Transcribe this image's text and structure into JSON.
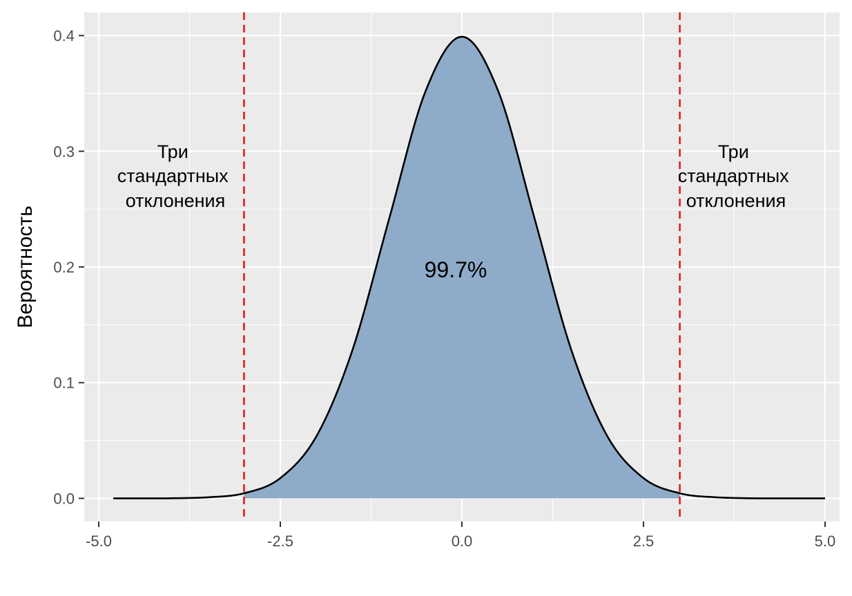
{
  "chart_data": {
    "type": "area",
    "title": "",
    "xlabel": "",
    "ylabel": "Вероятность",
    "xlim": [
      -5.2,
      5.2
    ],
    "ylim": [
      -0.02,
      0.42
    ],
    "x_ticks": [
      -5.0,
      -2.5,
      0.0,
      2.5,
      5.0
    ],
    "x_tick_labels": [
      "-5.0",
      "-2.5",
      "0.0",
      "2.5",
      "5.0"
    ],
    "y_ticks": [
      0.0,
      0.1,
      0.2,
      0.3,
      0.4
    ],
    "y_tick_labels": [
      "0.0",
      "0.1",
      "0.2",
      "0.3",
      "0.4"
    ],
    "grid": true,
    "series": [
      {
        "x": [
          -4.8,
          -4.5,
          -4.0,
          -3.5,
          -3.0,
          -2.5,
          -2.0,
          -1.5,
          -1.0,
          -0.5,
          0.0,
          0.5,
          1.0,
          1.5,
          2.0,
          2.5,
          3.0,
          3.5,
          4.0,
          4.5,
          5.0
        ],
        "y": [
          0.0,
          0.0,
          0.0001,
          0.0009,
          0.0044,
          0.0175,
          0.054,
          0.1295,
          0.242,
          0.352,
          0.399,
          0.352,
          0.242,
          0.1295,
          0.054,
          0.0175,
          0.0044,
          0.0009,
          0.0001,
          0.0,
          0.0
        ],
        "shaded_range": [
          -3.0,
          3.0
        ]
      }
    ],
    "vlines": [
      -3.0,
      3.0
    ],
    "colors": {
      "fill": "#8eabc9",
      "curve": "#000000",
      "vline": "#e41a1c",
      "panel": "#ebebeb",
      "grid": "#ffffff"
    },
    "annotations": {
      "left": [
        "Три",
        "стандартных",
        "отклонения"
      ],
      "right": [
        "Три",
        "стандартных",
        "отклонения"
      ],
      "center": "99.7%"
    }
  }
}
